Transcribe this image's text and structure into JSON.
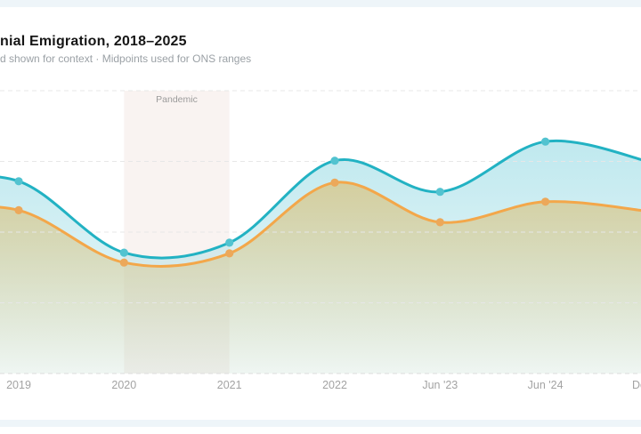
{
  "page": {
    "title_fragment": "nial Emigration, 2018–2025",
    "subtitle_fragment": "d shown for context · Midpoints used for ONS ranges"
  },
  "chart_data": {
    "type": "area",
    "x_labels": [
      "2019",
      "2020",
      "2021",
      "2022",
      "Jun '23",
      "Jun '24",
      "De"
    ],
    "series": [
      {
        "name": "teal-series",
        "color": "#22b2c3",
        "dot_color": "#52c3d0",
        "values": [
          272,
          171,
          185,
          301,
          257,
          328,
          299
        ]
      },
      {
        "name": "orange-series",
        "color": "#f3a74a",
        "dot_color": "#eca85a",
        "values": [
          231,
          157,
          170,
          270,
          214,
          243,
          229
        ]
      }
    ],
    "ylim": [
      0,
      400
    ],
    "y_axis_labels_visible": false,
    "legend_visible": false,
    "grid": "dashed-horizontal",
    "annotations": [
      {
        "type": "band",
        "label": "Pandemic",
        "from_x_label": "2020",
        "to_x_label": "2021",
        "color": "#f8f1ee"
      }
    ]
  },
  "colors": {
    "page_bg_strip": "#eef5f9",
    "card_bg": "#ffffff",
    "title": "#161616",
    "subtitle": "#9ba1a6",
    "gridline": "#e7e7e7",
    "axis_line": "#dcdcdc",
    "tick_label": "#a3a3a3",
    "band_fill": "#f8f1ee",
    "band_label": "#9b9b9b",
    "teal_fill": "rgba(139,214,225,0.55)",
    "orange_fill": "rgba(216,199,138,0.80)"
  }
}
